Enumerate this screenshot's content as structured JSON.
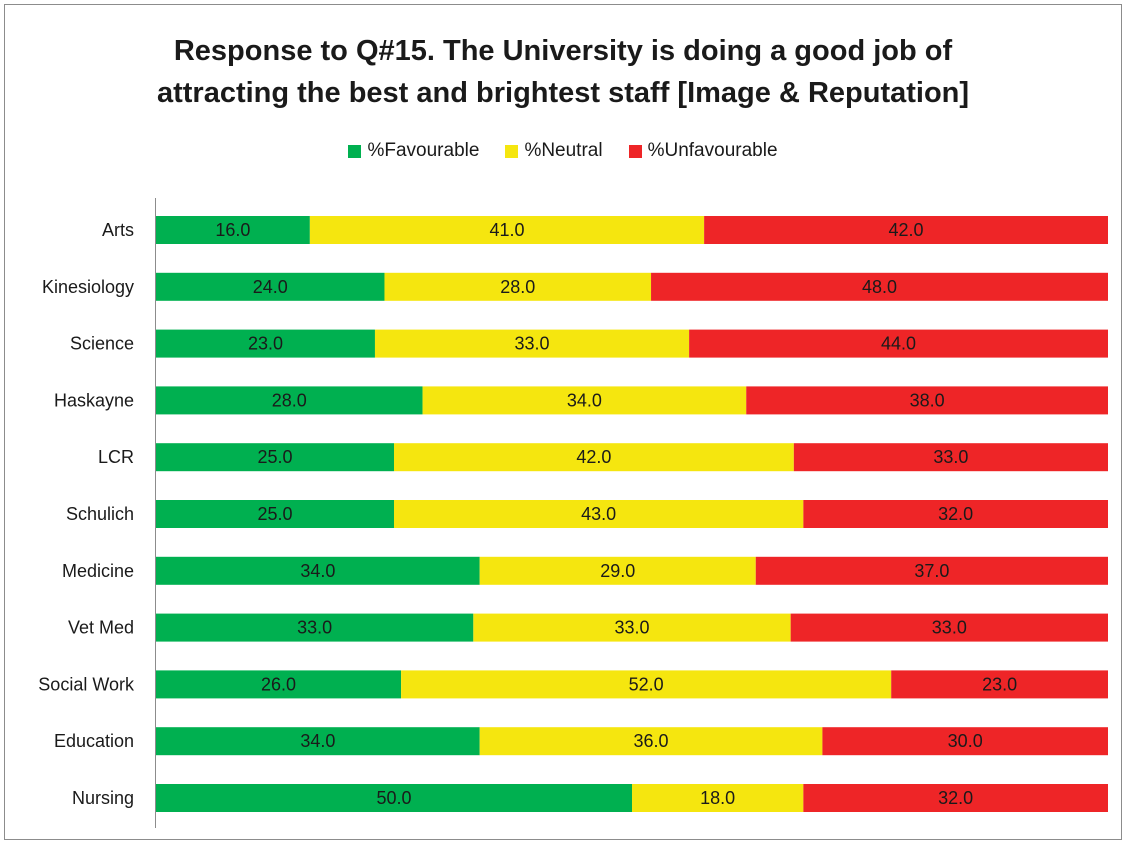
{
  "chart_data": {
    "type": "bar",
    "orientation": "horizontal",
    "stacked": true,
    "title_lines": [
      "Response to Q#15. The University is doing a good job of",
      "attracting the best and brightest staff [Image & Reputation]"
    ],
    "categories": [
      "Arts",
      "Kinesiology",
      "Science",
      "Haskayne",
      "LCR",
      "Schulich",
      "Medicine",
      "Vet Med",
      "Social Work",
      "Education",
      "Nursing"
    ],
    "series": [
      {
        "name": "%Favourable",
        "color": "#00b050",
        "values": [
          16.0,
          24.0,
          23.0,
          28.0,
          25.0,
          25.0,
          34.0,
          33.0,
          26.0,
          34.0,
          50.0
        ],
        "labels": [
          "16.0",
          "24.0",
          "23.0",
          "28.0",
          "25.0",
          "25.0",
          "34.0",
          "33.0",
          "26.0",
          "34.0",
          "50.0"
        ]
      },
      {
        "name": "%Neutral",
        "color": "#f5e60f",
        "values": [
          41.0,
          28.0,
          33.0,
          34.0,
          42.0,
          43.0,
          29.0,
          33.0,
          52.0,
          36.0,
          18.0
        ],
        "labels": [
          "41.0",
          "28.0",
          "33.0",
          "34.0",
          "42.0",
          "43.0",
          "29.0",
          "33.0",
          "52.0",
          "36.0",
          "18.0"
        ]
      },
      {
        "name": "%Unfavourable",
        "color": "#ee2527",
        "values": [
          42.0,
          48.0,
          44.0,
          38.0,
          33.0,
          32.0,
          37.0,
          33.0,
          23.0,
          30.0,
          32.0
        ],
        "labels": [
          "42.0",
          "48.0",
          "44.0",
          "38.0",
          "33.0",
          "32.0",
          "37.0",
          "33.0",
          "23.0",
          "30.0",
          "32.0"
        ]
      }
    ],
    "legend_position": "top",
    "grid": false
  }
}
